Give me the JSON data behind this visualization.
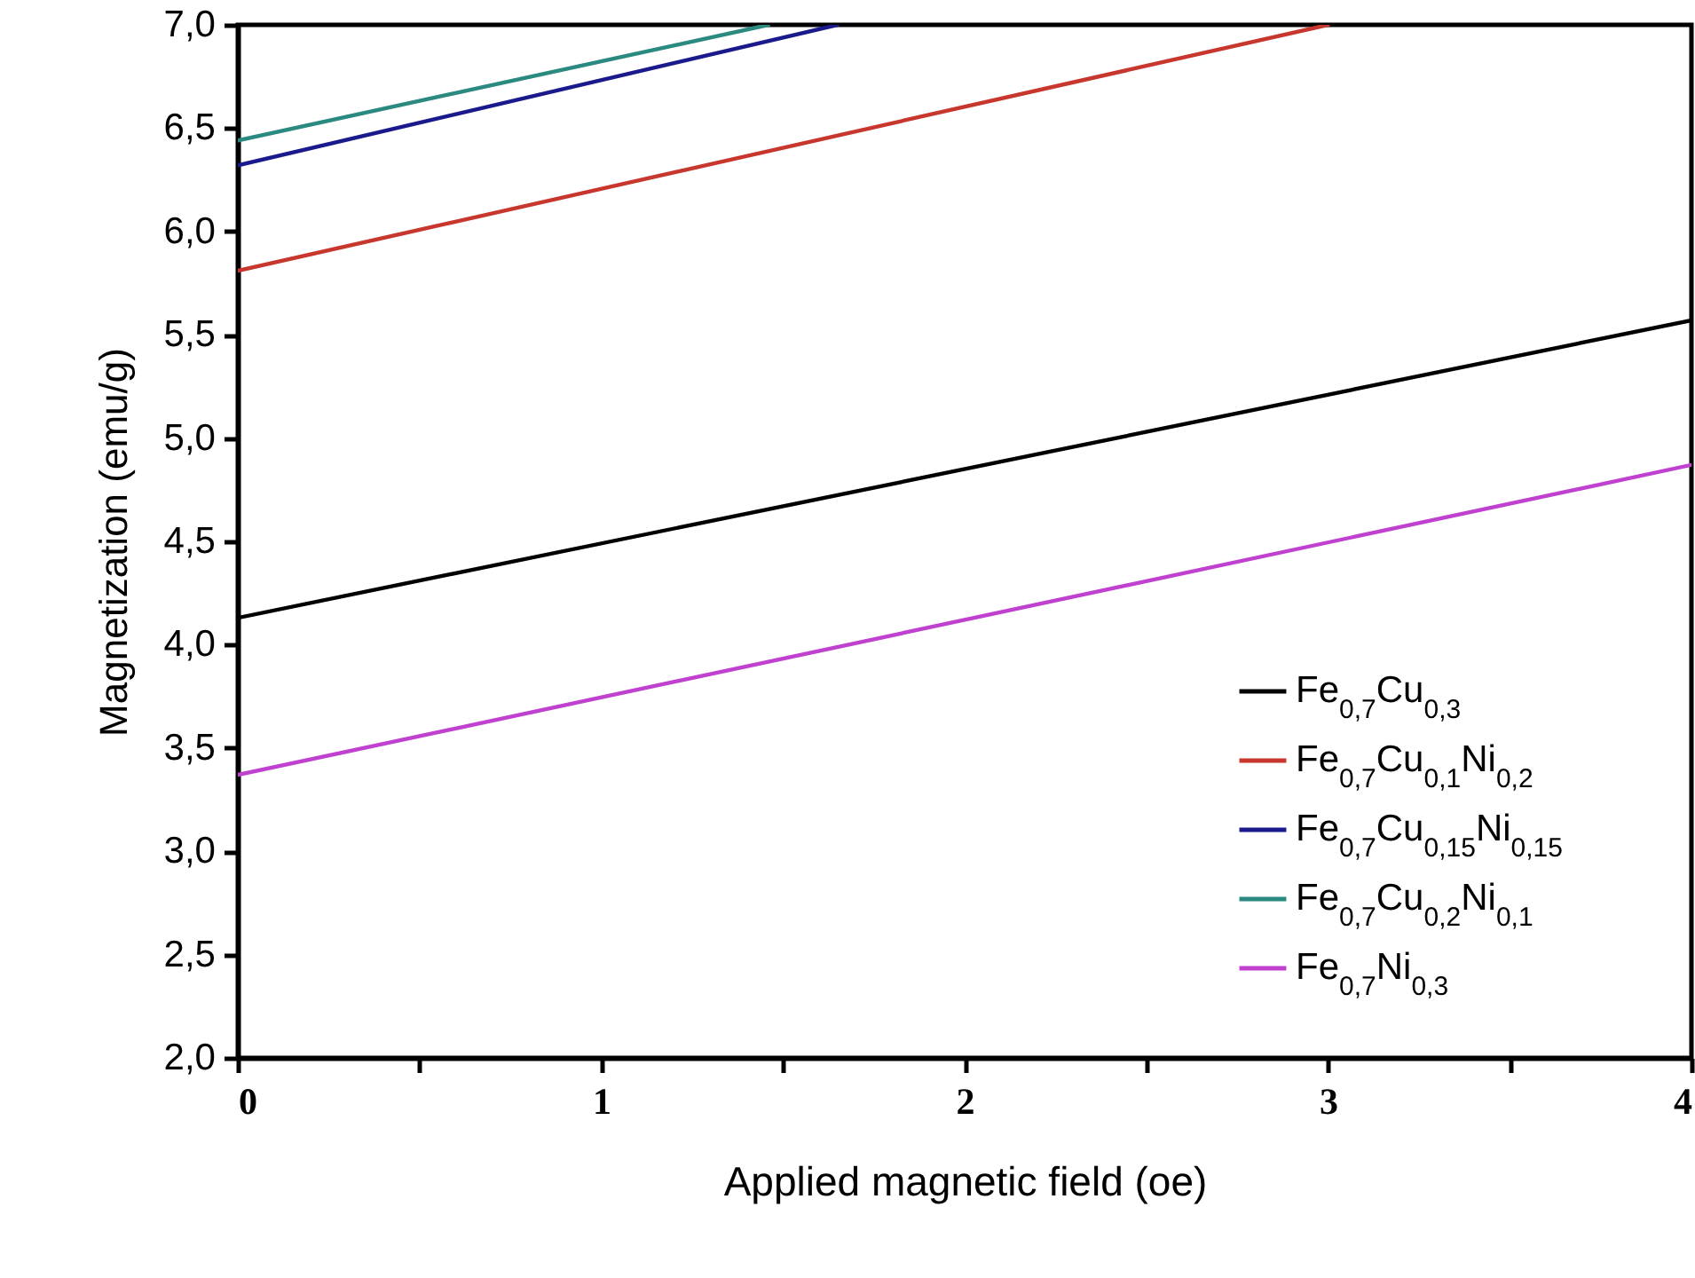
{
  "chart_data": {
    "type": "line",
    "xlabel": "Applied magnetic field (oe)",
    "ylabel": "Magnetization (emu/g)",
    "xlim": [
      0,
      4
    ],
    "ylim": [
      2,
      7
    ],
    "xticks": [
      0,
      {
        "value": 0.5,
        "label": null
      },
      1,
      {
        "value": 1.5,
        "label": null
      },
      2,
      {
        "value": 2.5,
        "label": null
      },
      3,
      {
        "value": 3.5,
        "label": null
      },
      4
    ],
    "yticks": [
      {
        "value": 2,
        "label": "2,0"
      },
      {
        "value": 2.5,
        "label": "2,5"
      },
      {
        "value": 3,
        "label": "3,0"
      },
      {
        "value": 3.5,
        "label": "3,5"
      },
      {
        "value": 4,
        "label": "4,0"
      },
      {
        "value": 4.5,
        "label": "4,5"
      },
      {
        "value": 5,
        "label": "5,0"
      },
      {
        "value": 5.5,
        "label": "5,5"
      },
      {
        "value": 6,
        "label": "6,0"
      },
      {
        "value": 6.5,
        "label": "6,5"
      },
      {
        "value": 7,
        "label": "7,0"
      }
    ],
    "grid": false,
    "legend": "bottom right",
    "marker": "none",
    "line_style": "solid",
    "series": [
      {
        "name": "Fe$_{0,7}$Cu$_{0,3}$",
        "color": "#000000",
        "x": [
          0,
          4
        ],
        "values": [
          4.13,
          5.57
        ]
      },
      {
        "name": "Fe$_{0,7}$Cu$_{0,1}$Ni$_{0,2}$",
        "color": "#c8372d",
        "x": [
          0,
          3
        ],
        "values": [
          5.81,
          7.0
        ]
      },
      {
        "name": "Fe$_{0,7}$Cu$_{0,15}$Ni$_{0,15}$",
        "color": "#1a1a8c",
        "x": [
          0,
          1.65
        ],
        "values": [
          6.32,
          7.0
        ]
      },
      {
        "name": "Fe$_{0,7}$Cu$_{0,2}$Ni$_{0,1}$",
        "color": "#2a8a80",
        "x": [
          0,
          1.46
        ],
        "values": [
          6.44,
          7.0
        ]
      },
      {
        "name": "Fe$_{0,7}$Ni$_{0,3}$",
        "color": "#c040d0",
        "x": [
          0,
          4
        ],
        "values": [
          3.37,
          4.87
        ]
      }
    ]
  }
}
